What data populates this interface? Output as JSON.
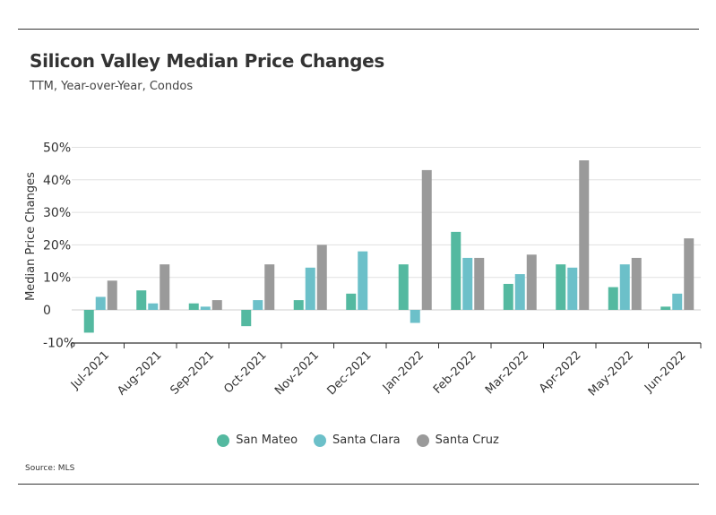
{
  "header": {
    "title": "Silicon Valley Median Price Changes",
    "subtitle": "TTM, Year-over-Year, Condos"
  },
  "footer": {
    "source": "Source:  MLS"
  },
  "colors": {
    "San Mateo": "#54b9a0",
    "Santa Clara": "#6cc0c9",
    "Santa Cruz": "#9a9a9a"
  },
  "chart_data": {
    "type": "bar",
    "title": "Silicon Valley Median Price Changes",
    "subtitle": "TTM, Year-over-Year, Condos",
    "xlabel": "",
    "ylabel": "Median Price Changes",
    "ylim": [
      -10,
      50
    ],
    "yticks": [
      -10,
      0,
      10,
      20,
      30,
      40,
      50
    ],
    "ytick_labels": [
      "-10%",
      "0",
      "10%",
      "20%",
      "30%",
      "40%",
      "50%"
    ],
    "categories": [
      "Jul-2021",
      "Aug-2021",
      "Sep-2021",
      "Oct-2021",
      "Nov-2021",
      "Dec-2021",
      "Jan-2022",
      "Feb-2022",
      "Mar-2022",
      "Apr-2022",
      "May-2022",
      "Jun-2022"
    ],
    "series": [
      {
        "name": "San Mateo",
        "values": [
          -7,
          6,
          2,
          -5,
          3,
          5,
          14,
          24,
          8,
          14,
          7,
          1
        ]
      },
      {
        "name": "Santa Clara",
        "values": [
          4,
          2,
          1,
          3,
          13,
          18,
          -4,
          16,
          11,
          13,
          14,
          5
        ]
      },
      {
        "name": "Santa Cruz",
        "values": [
          9,
          14,
          3,
          14,
          20,
          null,
          43,
          16,
          17,
          46,
          16,
          22
        ]
      }
    ],
    "legend": "bottom-center",
    "grid": true
  }
}
